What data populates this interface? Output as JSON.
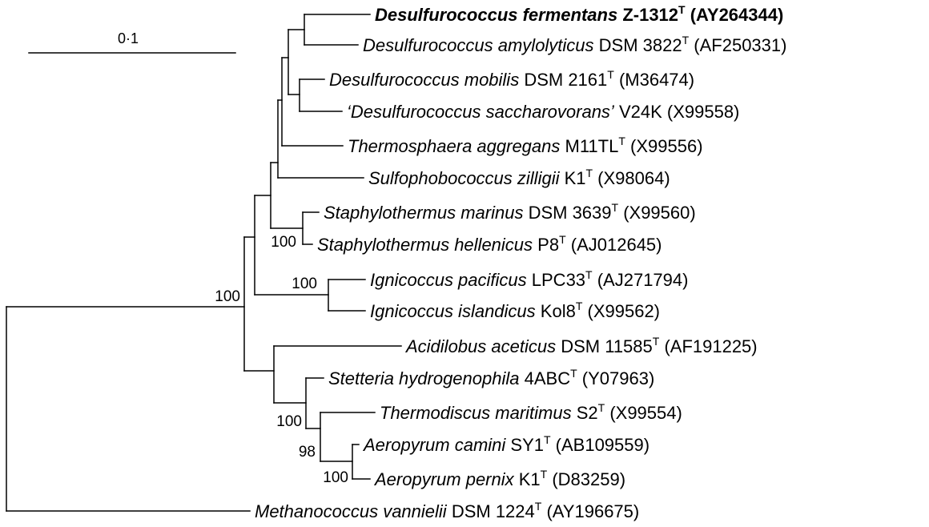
{
  "scale_bar": {
    "label": "0·1"
  },
  "taxa": [
    {
      "species": "Desulfurococcus fermentans",
      "strain": "Z-1312",
      "type_strain": true,
      "accession": "(AY264344)",
      "bold": true
    },
    {
      "species": "Desulfurococcus amylolyticus",
      "strain": "DSM 3822",
      "type_strain": true,
      "accession": "(AF250331)"
    },
    {
      "species": "Desulfurococcus mobilis",
      "strain": "DSM 2161",
      "type_strain": true,
      "accession": "(M36474)"
    },
    {
      "species": "‘Desulfurococcus saccharovorans’",
      "strain": "V24K",
      "type_strain": false,
      "accession": "(X99558)"
    },
    {
      "species": "Thermosphaera aggregans",
      "strain": "M11TL",
      "type_strain": true,
      "accession": "(X99556)"
    },
    {
      "species": "Sulfophobococcus zilligii",
      "strain": "K1",
      "type_strain": true,
      "accession": "(X98064)"
    },
    {
      "species": "Staphylothermus marinus",
      "strain": "DSM 3639",
      "type_strain": true,
      "accession": "(X99560)"
    },
    {
      "species": "Staphylothermus hellenicus",
      "strain": "P8",
      "type_strain": true,
      "accession": "(AJ012645)"
    },
    {
      "species": "Ignicoccus pacificus",
      "strain": "LPC33",
      "type_strain": true,
      "accession": "(AJ271794)"
    },
    {
      "species": "Ignicoccus islandicus",
      "strain": "Kol8",
      "type_strain": true,
      "accession": "(X99562)"
    },
    {
      "species": "Acidilobus aceticus",
      "strain": "DSM 11585",
      "type_strain": true,
      "accession": "(AF191225)"
    },
    {
      "species": "Stetteria hydrogenophila",
      "strain": "4ABC",
      "type_strain": true,
      "accession": "(Y07963)"
    },
    {
      "species": "Thermodiscus maritimus",
      "strain": "S2",
      "type_strain": true,
      "accession": "(X99554)"
    },
    {
      "species": "Aeropyrum camini",
      "strain": "SY1",
      "type_strain": true,
      "accession": "(AB109559)"
    },
    {
      "species": "Aeropyrum pernix",
      "strain": "K1",
      "type_strain": true,
      "accession": "(D83259)"
    },
    {
      "species": "Methanococcus vannielii",
      "strain": "DSM 1224",
      "type_strain": true,
      "accession": "(AY196675)"
    }
  ],
  "type_mark": "T",
  "bootstrap": [
    {
      "node": "ingroup",
      "value": "100"
    },
    {
      "node": "staphylothermus",
      "value": "100"
    },
    {
      "node": "ignicoccus",
      "value": "100"
    },
    {
      "node": "stetteria-aeropyrum",
      "value": "100"
    },
    {
      "node": "thermodiscus-aeropyrum",
      "value": "98"
    },
    {
      "node": "aeropyrum",
      "value": "100"
    }
  ]
}
